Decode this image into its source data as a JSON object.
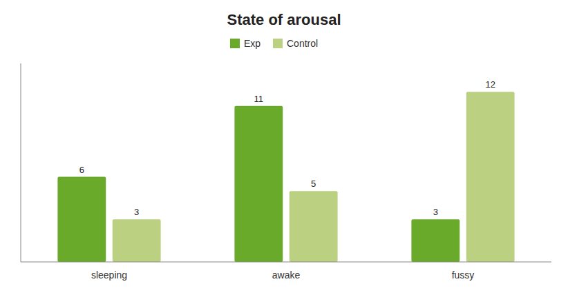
{
  "chart_data": {
    "type": "bar",
    "title": "State of arousal",
    "categories": [
      "sleeping",
      "awake",
      "fussy"
    ],
    "series": [
      {
        "name": "Exp",
        "color": "#6aaa2a",
        "values": [
          6,
          11,
          3
        ]
      },
      {
        "name": "Control",
        "color": "#bbd080",
        "values": [
          3,
          5,
          12
        ]
      }
    ],
    "ylim": [
      0,
      14
    ],
    "grid": false,
    "legend": "top",
    "data_labels": true,
    "tick_labels": "x"
  }
}
